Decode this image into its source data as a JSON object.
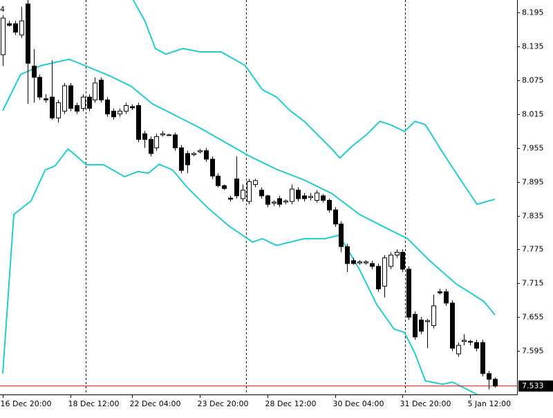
{
  "chart_data": {
    "type": "candlestick",
    "title": "4",
    "open": [
      8.12,
      8.175,
      8.175,
      8.155,
      8.21,
      8.1,
      8.08,
      8.042,
      8.045,
      8.008,
      8.02,
      8.065,
      8.03,
      8.025,
      8.045,
      8.04,
      8.075,
      8.04,
      8.02,
      8.015,
      8.02,
      8.028,
      8.03,
      7.98,
      7.97,
      7.955,
      7.978,
      7.978,
      7.978,
      7.955,
      7.945,
      7.943,
      7.948,
      7.95,
      7.935,
      7.905,
      7.888,
      7.866,
      7.9,
      7.865,
      7.86,
      7.89,
      7.88,
      7.87,
      7.857,
      7.865,
      7.859,
      7.86,
      7.88,
      7.87,
      7.867,
      7.862,
      7.87,
      7.862,
      7.845,
      7.82,
      7.78,
      7.755,
      7.751,
      7.751,
      7.75,
      7.745,
      7.71,
      7.745,
      7.765,
      7.77,
      7.74,
      7.66,
      7.65,
      7.647,
      7.64,
      7.7,
      7.7,
      7.68,
      7.59,
      7.612,
      7.611,
      7.61,
      7.61,
      7.555,
      7.545
    ],
    "high": [
      8.19,
      8.18,
      8.18,
      8.205,
      8.217,
      8.13,
      8.085,
      8.05,
      8.11,
      8.04,
      8.07,
      8.07,
      8.035,
      8.05,
      8.05,
      8.08,
      8.08,
      8.045,
      8.025,
      8.025,
      8.035,
      8.032,
      8.035,
      7.985,
      7.975,
      7.98,
      7.985,
      7.98,
      7.982,
      7.96,
      7.95,
      7.948,
      7.953,
      7.955,
      7.94,
      7.91,
      7.89,
      7.87,
      7.94,
      7.89,
      7.9,
      7.9,
      7.885,
      7.872,
      7.862,
      7.87,
      7.864,
      7.89,
      7.885,
      7.875,
      7.875,
      7.88,
      7.873,
      7.865,
      7.85,
      7.825,
      7.785,
      7.76,
      7.756,
      7.756,
      7.755,
      7.75,
      7.765,
      7.77,
      7.775,
      7.775,
      7.745,
      7.665,
      7.655,
      7.652,
      7.695,
      7.705,
      7.705,
      7.685,
      7.61,
      7.625,
      7.615,
      7.615,
      7.615,
      7.56,
      7.548
    ],
    "low": [
      8.1,
      8.17,
      8.155,
      8.15,
      8.033,
      8.035,
      8.04,
      8.035,
      8.005,
      8.0,
      8.015,
      8.02,
      8.015,
      8.02,
      8.02,
      8.035,
      8.035,
      8.01,
      8.005,
      8.01,
      8.015,
      8.022,
      7.965,
      7.955,
      7.94,
      7.95,
      7.975,
      7.976,
      7.95,
      7.91,
      7.91,
      7.94,
      7.945,
      7.93,
      7.9,
      7.885,
      7.88,
      7.86,
      7.865,
      7.86,
      7.855,
      7.885,
      7.865,
      7.85,
      7.852,
      7.85,
      7.855,
      7.855,
      7.86,
      7.86,
      7.862,
      7.858,
      7.858,
      7.84,
      7.815,
      7.77,
      7.735,
      7.748,
      7.748,
      7.748,
      7.74,
      7.7,
      7.69,
      7.74,
      7.76,
      7.735,
      7.65,
      7.615,
      7.625,
      7.6,
      7.635,
      7.695,
      7.675,
      7.595,
      7.585,
      7.605,
      7.605,
      7.595,
      7.55,
      7.527,
      7.53
    ],
    "close": [
      8.185,
      8.172,
      8.16,
      8.18,
      8.105,
      8.08,
      8.045,
      8.04,
      8.008,
      8.035,
      8.065,
      8.025,
      8.02,
      8.045,
      8.025,
      8.07,
      8.04,
      8.015,
      8.01,
      8.02,
      8.03,
      8.026,
      7.97,
      7.97,
      7.945,
      7.975,
      7.98,
      7.977,
      7.955,
      7.915,
      7.925,
      7.945,
      7.95,
      7.935,
      7.905,
      7.888,
      7.883,
      7.864,
      7.87,
      7.88,
      7.895,
      7.897,
      7.87,
      7.855,
      7.859,
      7.855,
      7.861,
      7.882,
      7.865,
      7.865,
      7.869,
      7.875,
      7.862,
      7.845,
      7.82,
      7.78,
      7.75,
      7.75,
      7.753,
      7.753,
      7.745,
      7.705,
      7.76,
      7.765,
      7.77,
      7.74,
      7.655,
      7.62,
      7.63,
      7.649,
      7.675,
      7.698,
      7.68,
      7.6,
      7.605,
      7.614,
      7.612,
      7.6,
      7.555,
      7.545,
      7.533
    ],
    "series": [
      {
        "color": "#22cccc",
        "x": [
          20.9,
          23.1,
          24.8,
          26.5,
          29.3,
          32.1,
          35.5,
          39.4,
          42.2,
          44.5,
          46.7,
          49,
          51.2,
          53.5,
          54.8,
          56.9,
          59.1,
          61.3,
          63,
          65.3,
          67,
          68.7,
          71.5,
          74.8,
          77.1,
          80
        ],
        "values": [
          8.223,
          8.18,
          8.131,
          8.121,
          8.131,
          8.125,
          8.125,
          8.101,
          8.058,
          8.045,
          8.021,
          8.002,
          7.978,
          7.953,
          7.937,
          7.959,
          7.978,
          8.002,
          7.996,
          7.984,
          8.002,
          7.996,
          7.947,
          7.892,
          7.855,
          7.864
        ]
      },
      {
        "color": "#22cccc",
        "x": [
          0,
          2.9,
          6.3,
          10.8,
          14.2,
          17.5,
          20.9,
          24.3,
          27.6,
          32.1,
          36.6,
          40,
          44.5,
          49,
          53.5,
          58,
          62.5,
          65.8,
          69.2,
          73.7,
          78.2,
          80
        ],
        "values": [
          8.021,
          8.085,
          8.101,
          8.112,
          8.097,
          8.082,
          8.064,
          8.033,
          8.015,
          7.99,
          7.962,
          7.941,
          7.917,
          7.898,
          7.874,
          7.837,
          7.812,
          7.794,
          7.757,
          7.714,
          7.683,
          7.659
        ]
      },
      {
        "color": "#22cccc",
        "x": [
          0,
          1.8,
          4.6,
          6.9,
          8.5,
          10.6,
          11.3,
          13.6,
          16.4,
          19.8,
          22,
          23.7,
          25.4,
          27.6,
          29.9,
          33.3,
          36.6,
          40.6,
          42.2,
          44.5,
          49,
          52.4,
          54.6,
          55.7,
          58,
          60.8,
          63.6,
          65.3,
          67,
          68.7,
          71.5,
          73.1,
          77.1
        ],
        "values": [
          7.555,
          7.837,
          7.861,
          7.916,
          7.923,
          7.953,
          7.947,
          7.925,
          7.925,
          7.904,
          7.913,
          7.91,
          7.926,
          7.916,
          7.886,
          7.849,
          7.818,
          7.788,
          7.794,
          7.782,
          7.794,
          7.794,
          7.8,
          7.782,
          7.739,
          7.677,
          7.634,
          7.628,
          7.591,
          7.542,
          7.536,
          7.54,
          7.518
        ]
      }
    ],
    "ylim": [
      7.518,
      8.217
    ],
    "yticks": [
      7.595,
      7.655,
      7.715,
      7.775,
      7.835,
      7.895,
      7.955,
      8.015,
      8.075,
      8.135,
      8.195
    ],
    "xlim": [
      -0.45,
      83.6
    ],
    "xticks": [
      {
        "value": 0,
        "label": "16 Dec 20:00"
      },
      {
        "value": 11,
        "label": "18 Dec 12:00"
      },
      {
        "value": 21,
        "label": "22 Dec 04:00"
      },
      {
        "value": 32,
        "label": "23 Dec 20:00"
      },
      {
        "value": 43,
        "label": "28 Dec 12:00"
      },
      {
        "value": 54,
        "label": "30 Dec 04:00"
      },
      {
        "value": 65,
        "label": "31 Dec 20:00"
      },
      {
        "value": 76,
        "label": "5 Jan 12:00"
      }
    ],
    "current_price": 7.533,
    "current_price_color": "#ff0000"
  }
}
